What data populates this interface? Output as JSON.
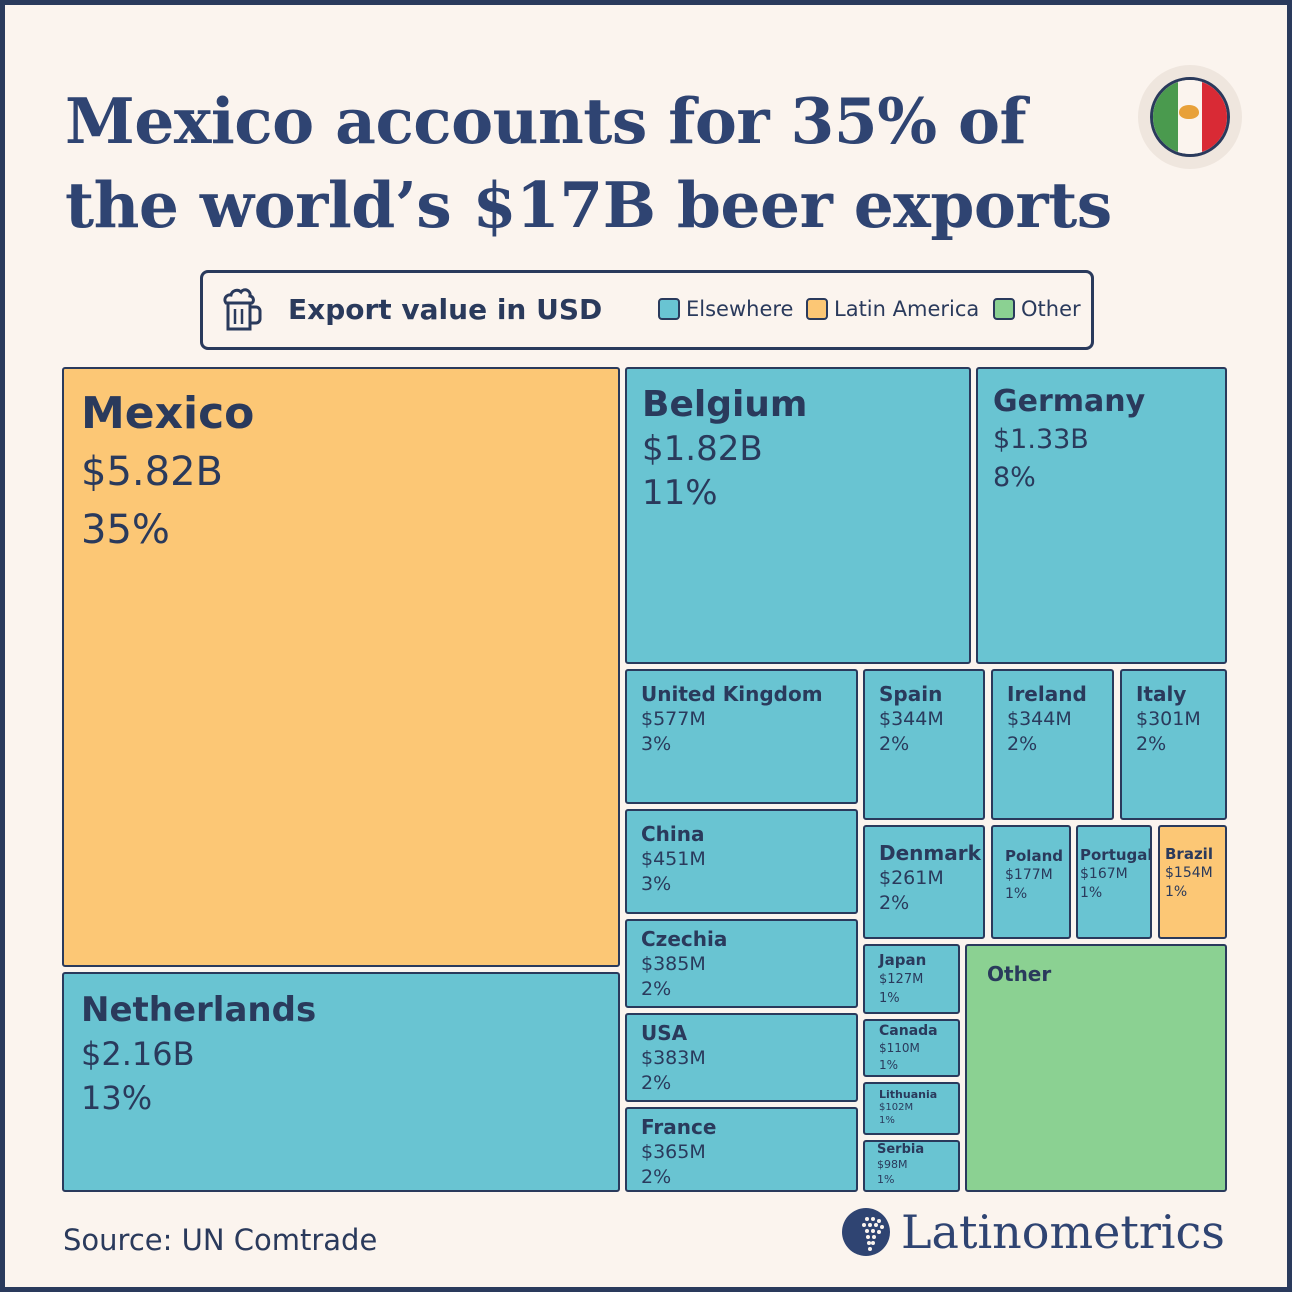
{
  "title_line1": "Mexico accounts for 35% of",
  "title_line2": "the world’s $17B beer exports",
  "flag_icon": "mexico-flag-icon",
  "legend": {
    "icon": "beer-mug-icon",
    "title": "Export value in USD",
    "items": [
      {
        "label": "Elsewhere",
        "color": "#69c4d2"
      },
      {
        "label": "Latin America",
        "color": "#fcc775"
      },
      {
        "label": "Other",
        "color": "#8bd192"
      }
    ]
  },
  "chart_data": {
    "type": "treemap",
    "title": "Mexico accounts for 35% of the world’s $17B beer exports",
    "total": "$17B",
    "unit": "USD",
    "series": [
      {
        "name": "Mexico",
        "value": 5.82,
        "value_label": "$5.82B",
        "percent_label": "35%",
        "group": "Latin America"
      },
      {
        "name": "Netherlands",
        "value": 2.16,
        "value_label": "$2.16B",
        "percent_label": "13%",
        "group": "Elsewhere"
      },
      {
        "name": "Belgium",
        "value": 1.82,
        "value_label": "$1.82B",
        "percent_label": "11%",
        "group": "Elsewhere"
      },
      {
        "name": "Germany",
        "value": 1.33,
        "value_label": "$1.33B",
        "percent_label": "8%",
        "group": "Elsewhere"
      },
      {
        "name": "United Kingdom",
        "value": 0.577,
        "value_label": "$577M",
        "percent_label": "3%",
        "group": "Elsewhere"
      },
      {
        "name": "China",
        "value": 0.451,
        "value_label": "$451M",
        "percent_label": "3%",
        "group": "Elsewhere"
      },
      {
        "name": "Czechia",
        "value": 0.385,
        "value_label": "$385M",
        "percent_label": "2%",
        "group": "Elsewhere"
      },
      {
        "name": "USA",
        "value": 0.383,
        "value_label": "$383M",
        "percent_label": "2%",
        "group": "Elsewhere"
      },
      {
        "name": "France",
        "value": 0.365,
        "value_label": "$365M",
        "percent_label": "2%",
        "group": "Elsewhere"
      },
      {
        "name": "Spain",
        "value": 0.344,
        "value_label": "$344M",
        "percent_label": "2%",
        "group": "Elsewhere"
      },
      {
        "name": "Ireland",
        "value": 0.344,
        "value_label": "$344M",
        "percent_label": "2%",
        "group": "Elsewhere"
      },
      {
        "name": "Italy",
        "value": 0.301,
        "value_label": "$301M",
        "percent_label": "2%",
        "group": "Elsewhere"
      },
      {
        "name": "Denmark",
        "value": 0.261,
        "value_label": "$261M",
        "percent_label": "2%",
        "group": "Elsewhere"
      },
      {
        "name": "Poland",
        "value": 0.177,
        "value_label": "$177M",
        "percent_label": "1%",
        "group": "Elsewhere"
      },
      {
        "name": "Portugal",
        "value": 0.167,
        "value_label": "$167M",
        "percent_label": "1%",
        "group": "Elsewhere"
      },
      {
        "name": "Brazil",
        "value": 0.154,
        "value_label": "$154M",
        "percent_label": "1%",
        "group": "Latin America"
      },
      {
        "name": "Japan",
        "value": 0.127,
        "value_label": "$127M",
        "percent_label": "1%",
        "group": "Elsewhere"
      },
      {
        "name": "Canada",
        "value": 0.11,
        "value_label": "$110M",
        "percent_label": "1%",
        "group": "Elsewhere"
      },
      {
        "name": "Lithuania",
        "value": 0.102,
        "value_label": "$102M",
        "percent_label": "1%",
        "group": "Elsewhere"
      },
      {
        "name": "Serbia",
        "value": 0.098,
        "value_label": "$98M",
        "percent_label": "1%",
        "group": "Elsewhere"
      },
      {
        "name": "Other",
        "value_label": "",
        "percent_label": "",
        "group": "Other"
      }
    ]
  },
  "source": "Source: UN Comtrade",
  "brand": {
    "name": "Latinometrics",
    "icon": "latinometrics-logo-icon"
  }
}
